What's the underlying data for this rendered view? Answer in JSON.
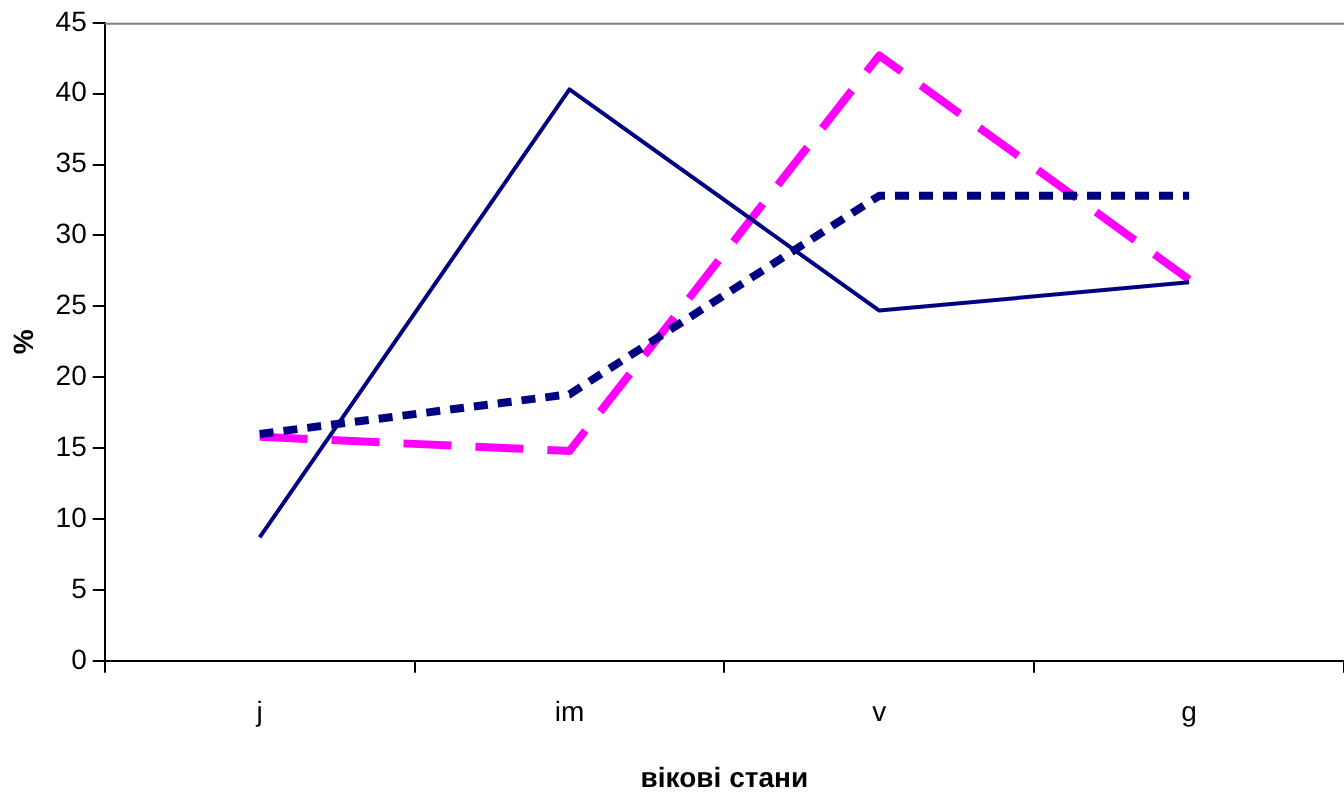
{
  "chart_data": {
    "type": "line",
    "xlabel": "вікові стани",
    "ylabel": "%",
    "categories": [
      "j",
      "im",
      "v",
      "g"
    ],
    "series": [
      {
        "color": "#000080",
        "line_style": "solid",
        "values": [
          8.7,
          40.3,
          24.7,
          26.7
        ]
      },
      {
        "color": "#000080",
        "line_style": "dotted",
        "values": [
          16,
          18.8,
          32.8,
          32.8
        ]
      },
      {
        "color": "#ff00ff",
        "line_style": "dashed",
        "values": [
          15.8,
          14.8,
          42.7,
          26.9
        ]
      }
    ],
    "ylim": [
      0,
      45
    ],
    "yticks": [
      0,
      5,
      10,
      15,
      20,
      25,
      30,
      35,
      40,
      45
    ],
    "grid": false,
    "legend": false
  }
}
